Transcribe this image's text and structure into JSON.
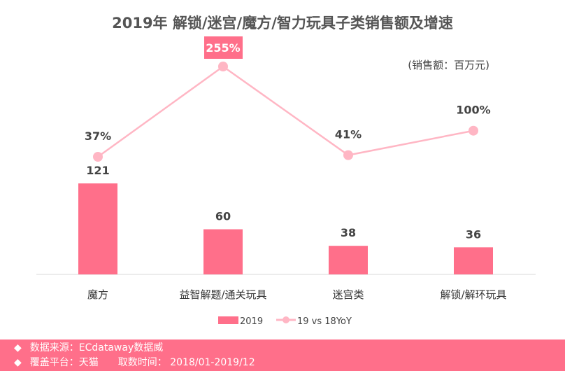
{
  "chart_data": {
    "type": "bar+line",
    "title": "2019年 解锁/迷宫/魔方/智力玩具子类销售额及增速",
    "unit_note": "(销售额：百万元)",
    "categories": [
      "魔方",
      "益智解题/通关玩具",
      "迷宫类",
      "解锁/解环玩具"
    ],
    "series": [
      {
        "name": "2019",
        "type": "bar",
        "values": [
          121,
          60,
          38,
          36
        ],
        "labels": [
          "121",
          "60",
          "38",
          "36"
        ],
        "color": "#ff6f8a"
      },
      {
        "name": "19 vs 18YoY",
        "type": "line",
        "values": [
          37,
          255,
          41,
          100
        ],
        "labels": [
          "37%",
          "255%",
          "41%",
          "100%"
        ],
        "color": "#ffb6c4",
        "highlight_index": 1
      }
    ],
    "legend": "bottom",
    "grid": false
  },
  "footer": {
    "bullet": "◆",
    "line1": "数据来源：ECdataway数据威",
    "line2a": "覆盖平台：天猫",
    "line2b": "取数时间： 2018/01-2019/12"
  }
}
